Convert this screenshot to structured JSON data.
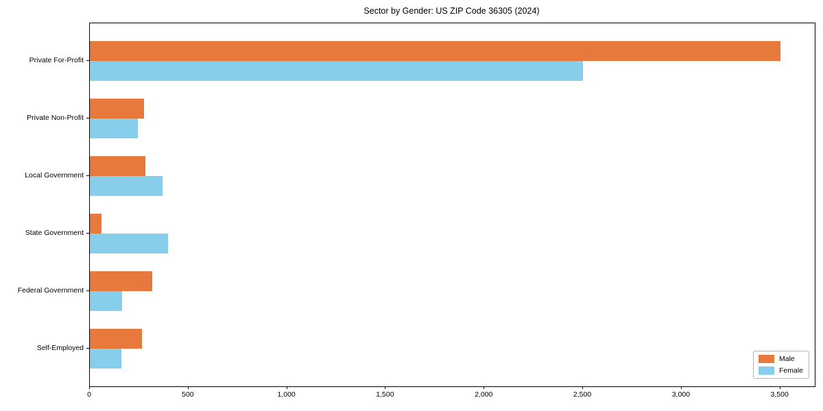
{
  "chart_data": {
    "type": "bar",
    "orientation": "horizontal",
    "title": "Sector by Gender: US ZIP Code 36305 (2024)",
    "categories": [
      "Private For-Profit",
      "Private Non-Profit",
      "Local Government",
      "State Government",
      "Federal Government",
      "Self-Employed"
    ],
    "series": [
      {
        "name": "Male",
        "color": "#e8793d",
        "values": [
          3500,
          275,
          280,
          60,
          315,
          265
        ]
      },
      {
        "name": "Female",
        "color": "#87ceeb",
        "values": [
          2500,
          245,
          370,
          395,
          165,
          160
        ]
      }
    ],
    "xlabel": "",
    "ylabel": "",
    "xlim": [
      0,
      3675
    ],
    "xticks": [
      {
        "value": 0,
        "label": "0"
      },
      {
        "value": 500,
        "label": "500"
      },
      {
        "value": 1000,
        "label": "1,000"
      },
      {
        "value": 1500,
        "label": "1,500"
      },
      {
        "value": 2000,
        "label": "2,000"
      },
      {
        "value": 2500,
        "label": "2,500"
      },
      {
        "value": 3000,
        "label": "3,000"
      },
      {
        "value": 3500,
        "label": "3,500"
      }
    ],
    "grid": false,
    "legend_position": "lower right",
    "colors": {
      "male": "#e8793d",
      "female": "#87ceeb",
      "axis": "#000000",
      "legend_border": "#b3b3b3",
      "background": "#ffffff"
    }
  }
}
